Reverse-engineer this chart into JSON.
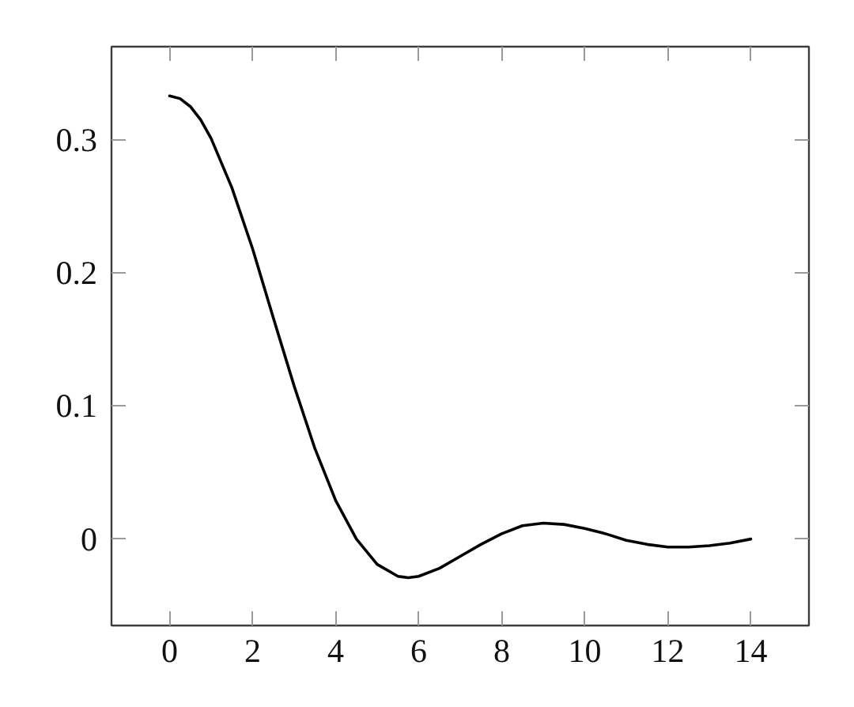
{
  "chart_data": {
    "type": "line",
    "x": [
      0,
      0.25,
      0.5,
      0.75,
      1,
      1.5,
      2,
      2.5,
      3,
      3.5,
      4,
      4.5,
      5,
      5.5,
      5.75,
      6,
      6.5,
      7,
      7.5,
      8,
      8.5,
      9,
      9.5,
      10,
      10.5,
      11,
      11.5,
      12,
      12.5,
      13,
      13.5,
      14
    ],
    "series": [
      {
        "color": "#000000",
        "values": [
          0.333,
          0.331,
          0.325,
          0.315,
          0.301,
          0.264,
          0.218,
          0.166,
          0.115,
          0.068,
          0.029,
          0.0,
          -0.019,
          -0.028,
          -0.029,
          -0.028,
          -0.022,
          -0.013,
          -0.004,
          0.004,
          0.01,
          0.012,
          0.011,
          0.008,
          0.004,
          -0.001,
          -0.004,
          -0.006,
          -0.006,
          -0.005,
          -0.003,
          0.0
        ]
      }
    ],
    "xlim": [
      -1.4,
      15.4
    ],
    "ylim": [
      -0.065,
      0.37
    ],
    "xticks": [
      0,
      2,
      4,
      6,
      8,
      10,
      12,
      14
    ],
    "yticks": [
      0,
      0.1,
      0.2,
      0.3
    ],
    "grid": false,
    "line_style": "solid"
  }
}
